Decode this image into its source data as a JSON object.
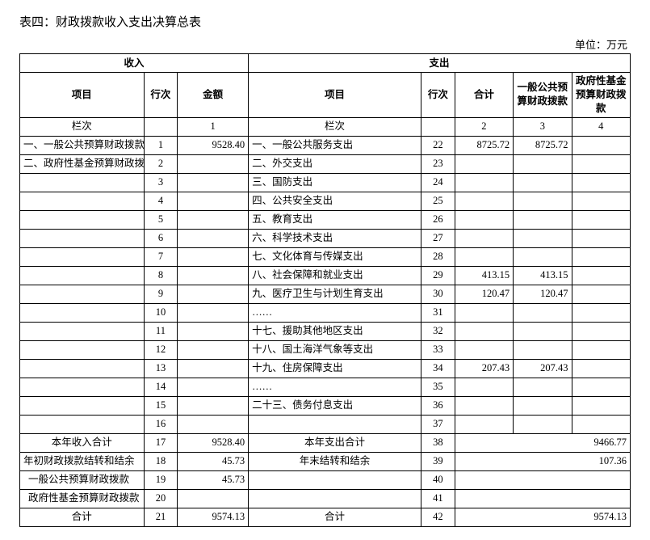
{
  "title": "表四：财政拨款收入支出决算总表",
  "unit_label": "单位：万元",
  "group_headers": {
    "income": "收入",
    "expense": "支出"
  },
  "col_headers": {
    "item": "项目",
    "row": "行次",
    "amount": "金额",
    "total": "合计",
    "budget": "一般公共预算财政拨款",
    "fund": "政府性基金预算财政拨款"
  },
  "lanci": "栏次",
  "col_nums": {
    "amount": "1",
    "total": "2",
    "budget": "3",
    "fund": "4"
  },
  "rows": [
    {
      "in_item": "一、一般公共预算财政拨款",
      "in_row": "1",
      "in_amt": "9528.40",
      "out_item": "一、一般公共服务支出",
      "out_row": "22",
      "total": "8725.72",
      "budget": "8725.72",
      "fund": ""
    },
    {
      "in_item": "二、政府性基金预算财政拨款",
      "in_row": "2",
      "in_amt": "",
      "out_item": "二、外交支出",
      "out_row": "23",
      "total": "",
      "budget": "",
      "fund": ""
    },
    {
      "in_item": "",
      "in_row": "3",
      "in_amt": "",
      "out_item": "三、国防支出",
      "out_row": "24",
      "total": "",
      "budget": "",
      "fund": ""
    },
    {
      "in_item": "",
      "in_row": "4",
      "in_amt": "",
      "out_item": "四、公共安全支出",
      "out_row": "25",
      "total": "",
      "budget": "",
      "fund": ""
    },
    {
      "in_item": "",
      "in_row": "5",
      "in_amt": "",
      "out_item": "五、教育支出",
      "out_row": "26",
      "total": "",
      "budget": "",
      "fund": ""
    },
    {
      "in_item": "",
      "in_row": "6",
      "in_amt": "",
      "out_item": "六、科学技术支出",
      "out_row": "27",
      "total": "",
      "budget": "",
      "fund": ""
    },
    {
      "in_item": "",
      "in_row": "7",
      "in_amt": "",
      "out_item": "七、文化体育与传媒支出",
      "out_row": "28",
      "total": "",
      "budget": "",
      "fund": ""
    },
    {
      "in_item": "",
      "in_row": "8",
      "in_amt": "",
      "out_item": "八、社会保障和就业支出",
      "out_row": "29",
      "total": "413.15",
      "budget": "413.15",
      "fund": ""
    },
    {
      "in_item": "",
      "in_row": "9",
      "in_amt": "",
      "out_item": "九、医疗卫生与计划生育支出",
      "out_row": "30",
      "total": "120.47",
      "budget": "120.47",
      "fund": ""
    },
    {
      "in_item": "",
      "in_row": "10",
      "in_amt": "",
      "out_item": "……",
      "out_row": "31",
      "total": "",
      "budget": "",
      "fund": ""
    },
    {
      "in_item": "",
      "in_row": "11",
      "in_amt": "",
      "out_item": "十七、援助其他地区支出",
      "out_row": "32",
      "total": "",
      "budget": "",
      "fund": ""
    },
    {
      "in_item": "",
      "in_row": "12",
      "in_amt": "",
      "out_item": "十八、国土海洋气象等支出",
      "out_row": "33",
      "total": "",
      "budget": "",
      "fund": ""
    },
    {
      "in_item": "",
      "in_row": "13",
      "in_amt": "",
      "out_item": "十九、住房保障支出",
      "out_row": "34",
      "total": "207.43",
      "budget": "207.43",
      "fund": ""
    },
    {
      "in_item": "",
      "in_row": "14",
      "in_amt": "",
      "out_item": "……",
      "out_row": "35",
      "total": "",
      "budget": "",
      "fund": ""
    },
    {
      "in_item": "",
      "in_row": "15",
      "in_amt": "",
      "out_item": "二十三、债务付息支出",
      "out_row": "36",
      "total": "",
      "budget": "",
      "fund": ""
    },
    {
      "in_item": "",
      "in_row": "16",
      "in_amt": "",
      "out_item": "",
      "out_row": "37",
      "total": "",
      "budget": "",
      "fund": ""
    }
  ],
  "summary": [
    {
      "in_item": "本年收入合计",
      "in_center": true,
      "in_row": "17",
      "in_amt": "9528.40",
      "out_item": "本年支出合计",
      "out_center": true,
      "out_row": "38",
      "merged_val": "9466.77"
    },
    {
      "in_item": "年初财政拨款结转和结余",
      "in_center": false,
      "in_row": "18",
      "in_amt": "45.73",
      "out_item": "年末结转和结余",
      "out_center": true,
      "out_row": "39",
      "merged_val": "107.36"
    },
    {
      "in_item": "一般公共预算财政拨款",
      "in_center": false,
      "indent": true,
      "in_row": "19",
      "in_amt": "45.73",
      "out_item": "",
      "out_row": "40",
      "merged_val": ""
    },
    {
      "in_item": "政府性基金预算财政拨款",
      "in_center": false,
      "indent": true,
      "in_row": "20",
      "in_amt": "",
      "out_item": "",
      "out_row": "41",
      "merged_val": ""
    },
    {
      "in_item": "合计",
      "in_center": true,
      "in_row": "21",
      "in_amt": "9574.13",
      "out_item": "合计",
      "out_center": true,
      "out_row": "42",
      "merged_val": "9574.13"
    }
  ]
}
